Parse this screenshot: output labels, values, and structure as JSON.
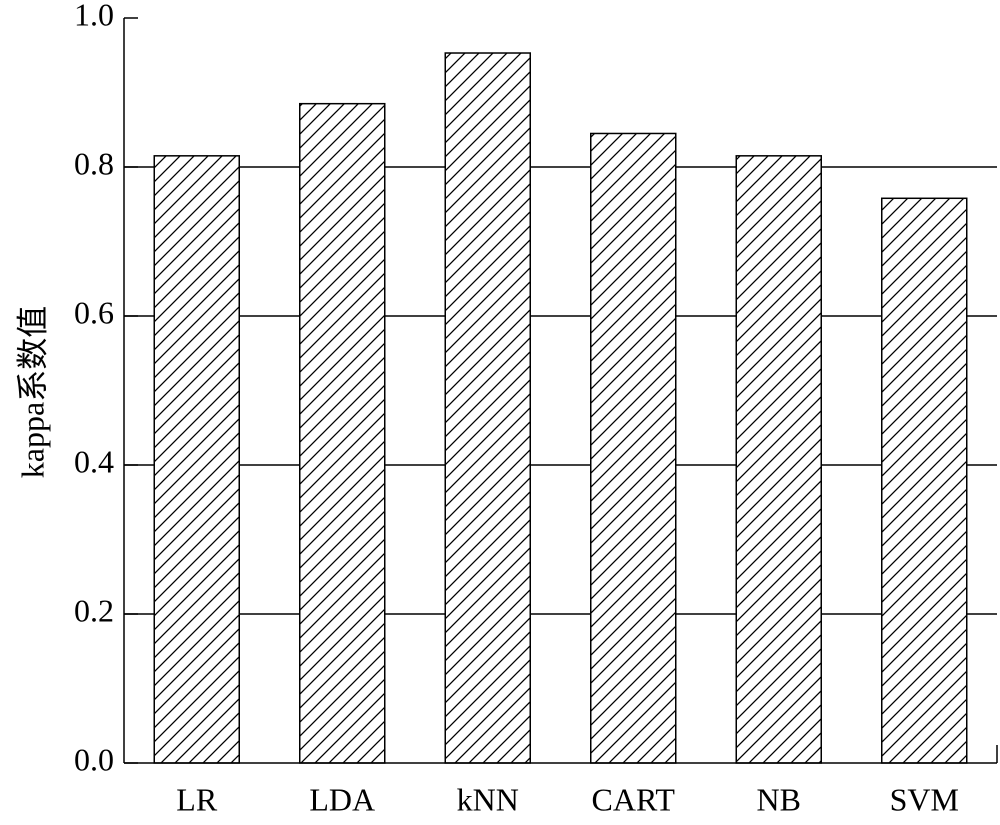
{
  "chart_data": {
    "type": "bar",
    "categories": [
      "LR",
      "LDA",
      "kNN",
      "CART",
      "NB",
      "SVM"
    ],
    "values": [
      0.815,
      0.885,
      0.953,
      0.845,
      0.815,
      0.758
    ],
    "ylabel": "kappa系数值",
    "xlabel": "",
    "ylim": [
      0.0,
      1.0
    ],
    "yticks": [
      "0.0",
      "0.2",
      "0.4",
      "0.6",
      "0.8",
      "1.0"
    ],
    "grid": "horizontal",
    "bar_fill": "diagonal-hatch",
    "colors": {
      "bar_stroke": "#000000",
      "hatch": "#000000",
      "grid": "#000000",
      "background": "#ffffff"
    }
  }
}
